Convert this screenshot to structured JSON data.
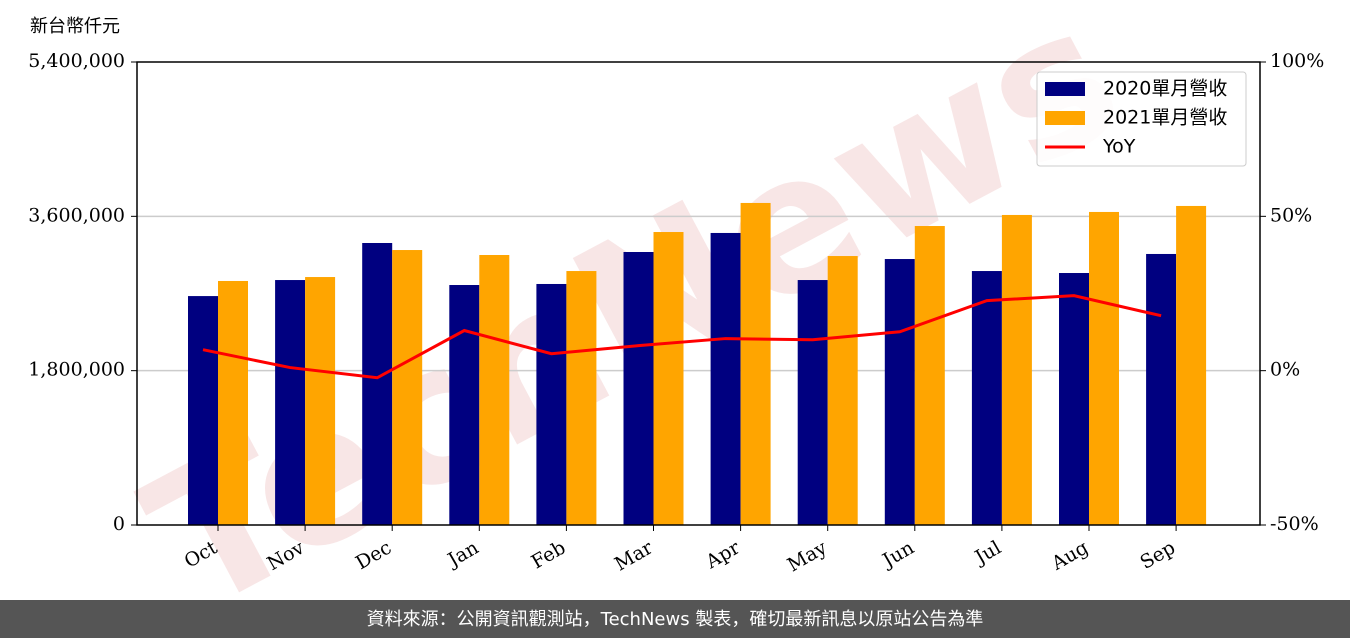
{
  "chart_data": {
    "type": "bar_line",
    "y_axis_label": "新台幣仟元",
    "watermark": "TechNews",
    "footer": "資料來源：公開資訊觀測站，TechNews 製表，確切最新訊息以原站公告為準",
    "categories": [
      "Oct",
      "Nov",
      "Dec",
      "Jan",
      "Feb",
      "Mar",
      "Apr",
      "May",
      "Jun",
      "Jul",
      "Aug",
      "Sep"
    ],
    "series": [
      {
        "name": "2020單月營收",
        "color": "#000080",
        "kind": "bar",
        "values": [
          2670000,
          2857000,
          3289000,
          2799000,
          2811000,
          3184000,
          3406000,
          2857000,
          3102000,
          2962000,
          2939000,
          3161000
        ]
      },
      {
        "name": "2021單月營收",
        "color": "#ffa500",
        "kind": "bar",
        "values": [
          2846000,
          2892000,
          3207000,
          3149000,
          2962000,
          3417000,
          3756000,
          3137000,
          3487000,
          3616000,
          3651000,
          3721000
        ]
      },
      {
        "name": "YoY",
        "color": "#ff0000",
        "kind": "line",
        "axis": "y2",
        "values": [
          6.8,
          1.0,
          -2.3,
          13.0,
          5.5,
          8.1,
          10.4,
          10.0,
          12.6,
          22.7,
          24.3,
          17.8
        ]
      }
    ],
    "ylim": [
      0,
      5400000
    ],
    "yticks": [
      0,
      {
        "value": 1800000,
        "label": "1,800,000"
      },
      {
        "value": 3600000,
        "label": "3,600,000"
      },
      {
        "value": 5400000,
        "label": "5,400,000"
      }
    ],
    "y2lim": [
      -50,
      100
    ],
    "y2ticks": [
      {
        "value": -50,
        "label": "-50%"
      },
      {
        "value": 0,
        "label": "0%"
      },
      {
        "value": 50,
        "label": "50%"
      },
      {
        "value": 100,
        "label": "100%"
      }
    ],
    "grid": true,
    "legend": "upper right"
  }
}
